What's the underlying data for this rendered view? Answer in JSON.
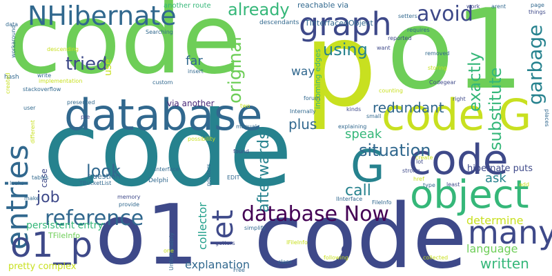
{
  "palette": {
    "lime": "#c8e020",
    "yellow_green": "#a0da39",
    "green": "#6ece58",
    "emerald": "#35b779",
    "teal": "#1f9e89",
    "blue_teal": "#26828e",
    "steel_blue": "#31688e",
    "indigo": "#3e4989",
    "purple": "#482878",
    "dark_purple": "#440154"
  },
  "words": [
    {
      "text": "code",
      "color": "#26828e"
    },
    {
      "text": "code",
      "color": "#6ece58"
    },
    {
      "text": "o1",
      "color": "#6ece58"
    },
    {
      "text": "o1",
      "color": "#3e4989"
    },
    {
      "text": "code",
      "color": "#3e4989"
    },
    {
      "text": "p",
      "color": "#c8e020"
    },
    {
      "text": "code G",
      "color": "#c8e020"
    },
    {
      "text": "database",
      "color": "#31688e"
    },
    {
      "text": "G",
      "color": "#26828e"
    },
    {
      "text": "code",
      "color": "#3e4989"
    },
    {
      "text": "object",
      "color": "#35b779"
    },
    {
      "text": "NHibernate",
      "color": "#31688e"
    },
    {
      "text": "graph",
      "color": "#3e4989"
    },
    {
      "text": "entries",
      "color": "#31688e"
    },
    {
      "text": "o1_p",
      "color": "#3e4989"
    },
    {
      "text": "many",
      "color": "#3e4989"
    },
    {
      "text": "let",
      "color": "#3e4989"
    },
    {
      "text": "database Now",
      "color": "#440154"
    },
    {
      "text": "reference",
      "color": "#31688e"
    },
    {
      "text": "avoid",
      "color": "#3e4989"
    },
    {
      "text": "already",
      "color": "#35b779"
    },
    {
      "text": "original",
      "color": "#6ece58"
    },
    {
      "text": "using",
      "color": "#26828e"
    },
    {
      "text": "tried",
      "color": "#3e4989"
    },
    {
      "text": "garbage",
      "color": "#26828e"
    },
    {
      "text": "exactly",
      "color": "#35b779"
    },
    {
      "text": "substitute",
      "color": "#35b779"
    },
    {
      "text": "redundant",
      "color": "#31688e"
    },
    {
      "text": "situation",
      "color": "#31688e"
    },
    {
      "text": "plus",
      "color": "#31688e"
    },
    {
      "text": "afterwards",
      "color": "#26828e"
    },
    {
      "text": "look",
      "color": "#31688e"
    },
    {
      "text": "call",
      "color": "#26828e"
    },
    {
      "text": "job",
      "color": "#3e4989"
    },
    {
      "text": "collector",
      "color": "#1f9e89"
    },
    {
      "text": "ask",
      "color": "#26828e"
    },
    {
      "text": "determine",
      "color": "#c8e020"
    },
    {
      "text": "language",
      "color": "#6ece58"
    },
    {
      "text": "written",
      "color": "#35b779"
    },
    {
      "text": "explanation",
      "color": "#31688e"
    },
    {
      "text": "hibernate puts",
      "color": "#3e4989"
    },
    {
      "text": "speak",
      "color": "#35b779"
    },
    {
      "text": "far",
      "color": "#31688e"
    },
    {
      "text": "way",
      "color": "#31688e"
    },
    {
      "text": "persistent entry",
      "color": "#35b779"
    },
    {
      "text": "pretty complex",
      "color": "#c8e020"
    },
    {
      "text": "e",
      "color": "#3e4989"
    },
    {
      "text": "via another",
      "color": "#482878"
    },
    {
      "text": "reachable via",
      "color": "#31688e"
    },
    {
      "text": "another route",
      "color": "#35b779"
    },
    {
      "text": "descendants",
      "color": "#31688e"
    },
    {
      "text": "TInterfacedObject",
      "color": "#31688e"
    },
    {
      "text": "incoming edges",
      "color": "#35b779"
    },
    {
      "text": "question",
      "color": "#31688e"
    },
    {
      "text": "case",
      "color": "#3e4989"
    },
    {
      "text": "TFileInfo",
      "color": "#6ece58"
    },
    {
      "text": "memory",
      "color": "#3e4989"
    },
    {
      "text": "Delphi",
      "color": "#31688e"
    },
    {
      "text": "TBucketList",
      "color": "#31688e"
    },
    {
      "text": "use",
      "color": "#c8e020"
    },
    {
      "text": "workaround",
      "color": "#31688e"
    },
    {
      "text": "stackoverflow",
      "color": "#31688e"
    },
    {
      "text": "Unfortunately",
      "color": "#31688e"
    },
    {
      "text": "FileInfo",
      "color": "#31688e"
    },
    {
      "text": "IFileInfo",
      "color": "#c8e020"
    },
    {
      "text": "IInterface",
      "color": "#31688e"
    },
    {
      "text": "getters",
      "color": "#3e4989"
    },
    {
      "text": "setters",
      "color": "#31688e"
    },
    {
      "text": "Codegear",
      "color": "#3e4989"
    },
    {
      "text": "implementation",
      "color": "#c8e020"
    },
    {
      "text": "explaining",
      "color": "#31688e"
    },
    {
      "text": "interface",
      "color": "#31688e"
    },
    {
      "text": "pointers",
      "color": "#31688e"
    },
    {
      "text": "strong",
      "color": "#3e4989"
    },
    {
      "text": "kinds",
      "color": "#3e4989"
    },
    {
      "text": "lot",
      "color": "#3e4989"
    },
    {
      "text": "different",
      "color": "#c8e020"
    },
    {
      "text": "descending",
      "color": "#c8e020"
    },
    {
      "text": "Searching",
      "color": "#31688e"
    },
    {
      "text": "requires",
      "color": "#31688e"
    },
    {
      "text": "reported",
      "color": "#3e4989"
    },
    {
      "text": "want",
      "color": "#3e4989"
    },
    {
      "text": "removed",
      "color": "#31688e"
    },
    {
      "text": "storing",
      "color": "#c8e020"
    },
    {
      "text": "counting",
      "color": "#c8e020"
    },
    {
      "text": "right",
      "color": "#3e4989"
    },
    {
      "text": "forum",
      "color": "#31688e"
    },
    {
      "text": "custom",
      "color": "#31688e"
    },
    {
      "text": "insert",
      "color": "#31688e"
    },
    {
      "text": "write",
      "color": "#31688e"
    },
    {
      "text": "hash",
      "color": "#31688e"
    },
    {
      "text": "created",
      "color": "#c8e020"
    },
    {
      "text": "data",
      "color": "#31688e"
    },
    {
      "text": "presented",
      "color": "#31688e"
    },
    {
      "text": "user",
      "color": "#31688e"
    },
    {
      "text": "two",
      "color": "#c8e020"
    },
    {
      "text": "manual",
      "color": "#31688e"
    },
    {
      "text": "Internally",
      "color": "#31688e"
    },
    {
      "text": "small",
      "color": "#31688e"
    },
    {
      "text": "possibility",
      "color": "#c8e020"
    },
    {
      "text": "found",
      "color": "#3e4989"
    },
    {
      "text": "href",
      "color": "#c8e020"
    },
    {
      "text": "create",
      "color": "#c8e020"
    },
    {
      "text": "EDIT",
      "color": "#31688e"
    },
    {
      "text": "add",
      "color": "#c8e020"
    },
    {
      "text": "least",
      "color": "#3e4989"
    },
    {
      "text": "type",
      "color": "#31688e"
    },
    {
      "text": "provide",
      "color": "#31688e"
    },
    {
      "text": "leaks",
      "color": "#31688e"
    },
    {
      "text": "tables",
      "color": "#31688e"
    },
    {
      "text": "make",
      "color": "#31688e"
    },
    {
      "text": "simplify",
      "color": "#31688e"
    },
    {
      "text": "following",
      "color": "#c8e020"
    },
    {
      "text": "class",
      "color": "#31688e"
    },
    {
      "text": "collected",
      "color": "#c8e020"
    },
    {
      "text": "Free",
      "color": "#31688e"
    },
    {
      "text": "one",
      "color": "#c8e020"
    },
    {
      "text": "pre",
      "color": "#3e4989"
    },
    {
      "text": "work",
      "color": "#3e4989"
    },
    {
      "text": "arent",
      "color": "#31688e"
    },
    {
      "text": "page",
      "color": "#31688e"
    },
    {
      "text": "things",
      "color": "#3e4989"
    },
    {
      "text": "places",
      "color": "#31688e"
    }
  ]
}
